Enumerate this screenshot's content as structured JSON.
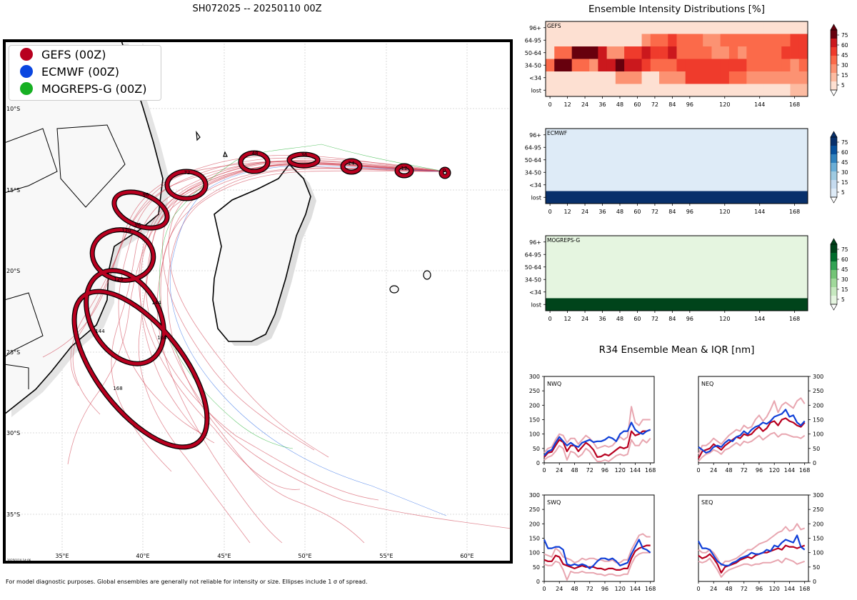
{
  "map": {
    "title": "SH072025 -- 20250110 00Z",
    "footer": "For model diagnostic purposes. Global ensembles are generally not reliable for intensity or size. Ellipses include 1 σ of spread.",
    "stamp": "20250110.14:06",
    "lon_labels": [
      "35°E",
      "40°E",
      "45°E",
      "50°E",
      "55°E",
      "60°E"
    ],
    "lat_labels": [
      "10°S",
      "15°S",
      "20°S",
      "25°S",
      "30°S",
      "35°S"
    ],
    "legend": [
      {
        "label": "GEFS (00Z)",
        "color": "#b8001f"
      },
      {
        "label": "ECMWF (00Z)",
        "color": "#0a46e0"
      },
      {
        "label": "MOGREPS-G (00Z)",
        "color": "#17b023"
      }
    ],
    "ellipse_labels": [
      "0",
      "12",
      "24",
      "36",
      "48",
      "72",
      "96",
      "96",
      "120",
      "120",
      "144",
      "144",
      "168",
      "168"
    ]
  },
  "heatmap": {
    "title": "Ensemble Intensity Distributions [%]",
    "row_labels": [
      "96+",
      "64-95",
      "50-64",
      "34-50",
      "<34",
      "lost"
    ],
    "x_ticks": [
      "0",
      "12",
      "24",
      "36",
      "48",
      "60",
      "72",
      "84",
      "96",
      "120",
      "144",
      "168"
    ],
    "colorbar_ticks": [
      "75",
      "60",
      "45",
      "30",
      "15",
      "5"
    ],
    "panels": [
      {
        "name": "GEFS",
        "colors": [
          "#fde0d2",
          "#fcbba1",
          "#fc9272",
          "#fb6a4a",
          "#ef3b2c",
          "#cb181d",
          "#67000d"
        ]
      },
      {
        "name": "ECMWF",
        "colors": [
          "#deebf7",
          "#c6dbef",
          "#9ecae1",
          "#6baed6",
          "#3182bd",
          "#08519c",
          "#08306b"
        ]
      },
      {
        "name": "MOGREPS-G",
        "colors": [
          "#e5f5e0",
          "#c7e9c0",
          "#a1d99b",
          "#74c476",
          "#31a354",
          "#006d2c",
          "#00441b"
        ]
      }
    ]
  },
  "r34": {
    "title": "R34 Ensemble Mean & IQR [nm]",
    "y_ticks": [
      "300",
      "250",
      "200",
      "150",
      "100",
      "50",
      "0"
    ],
    "x_ticks": [
      "0",
      "24",
      "48",
      "72",
      "96",
      "120",
      "144",
      "168"
    ],
    "panels": [
      {
        "name": "NWQ"
      },
      {
        "name": "NEQ"
      },
      {
        "name": "SWQ"
      },
      {
        "name": "SEQ"
      }
    ]
  },
  "chart_data": [
    {
      "type": "heatmap",
      "title": "Ensemble Intensity Distributions [%] - GEFS",
      "x": [
        0,
        6,
        12,
        18,
        24,
        30,
        36,
        42,
        48,
        54,
        60,
        66,
        72,
        78,
        84,
        90,
        96,
        102,
        108,
        114,
        120,
        126,
        132,
        138,
        144,
        150,
        156,
        162,
        168,
        174
      ],
      "y_categories": [
        "96+",
        "64-95",
        "50-64",
        "34-50",
        "<34",
        "lost"
      ],
      "values": [
        [
          0,
          0,
          0,
          0,
          0,
          0,
          0,
          0,
          0,
          0,
          0,
          0,
          0,
          0,
          0,
          0,
          0,
          0,
          0,
          0,
          0,
          0,
          0,
          0,
          0,
          0,
          0,
          0,
          0,
          0
        ],
        [
          0,
          0,
          0,
          0,
          0,
          0,
          0,
          0,
          0,
          0,
          0,
          15,
          30,
          30,
          45,
          30,
          30,
          30,
          15,
          15,
          30,
          30,
          30,
          30,
          30,
          30,
          30,
          30,
          45,
          45
        ],
        [
          0,
          30,
          30,
          75,
          75,
          75,
          60,
          15,
          15,
          45,
          45,
          60,
          45,
          45,
          60,
          30,
          30,
          30,
          30,
          15,
          15,
          30,
          15,
          30,
          30,
          30,
          30,
          45,
          45,
          45
        ],
        [
          30,
          75,
          75,
          30,
          30,
          15,
          60,
          60,
          75,
          60,
          60,
          45,
          30,
          30,
          30,
          45,
          45,
          45,
          45,
          45,
          45,
          45,
          45,
          30,
          30,
          30,
          30,
          30,
          15,
          30
        ],
        [
          0,
          0,
          0,
          0,
          0,
          0,
          0,
          0,
          15,
          15,
          15,
          0,
          0,
          15,
          15,
          15,
          45,
          45,
          45,
          45,
          45,
          30,
          30,
          15,
          15,
          15,
          15,
          15,
          15,
          15
        ],
        [
          0,
          0,
          0,
          0,
          0,
          0,
          0,
          0,
          0,
          0,
          0,
          0,
          0,
          0,
          0,
          0,
          0,
          0,
          0,
          0,
          0,
          0,
          0,
          0,
          0,
          0,
          0,
          0,
          5,
          5
        ]
      ]
    },
    {
      "type": "heatmap",
      "title": "Ensemble Intensity Distributions [%] - ECMWF",
      "x_range": [
        0,
        174
      ],
      "y_categories": [
        "96+",
        "64-95",
        "50-64",
        "34-50",
        "<34",
        "lost"
      ],
      "rows_percent": {
        "96+": 0,
        "64-95": 0,
        "50-64": 0,
        "34-50": 0,
        "<34": 0,
        "lost": 100
      }
    },
    {
      "type": "heatmap",
      "title": "Ensemble Intensity Distributions [%] - MOGREPS-G",
      "x_range": [
        0,
        174
      ],
      "y_categories": [
        "96+",
        "64-95",
        "50-64",
        "34-50",
        "<34",
        "lost"
      ],
      "rows_percent": {
        "96+": 0,
        "64-95": 0,
        "50-64": 0,
        "34-50": 0,
        "<34": 0,
        "lost": 100
      }
    },
    {
      "type": "line",
      "title": "NWQ",
      "x": [
        0,
        6,
        12,
        18,
        24,
        30,
        36,
        42,
        48,
        54,
        60,
        66,
        72,
        78,
        84,
        90,
        96,
        102,
        108,
        114,
        120,
        126,
        132,
        138,
        144,
        150,
        156,
        162,
        168
      ],
      "ylim": [
        0,
        300
      ],
      "series": [
        {
          "name": "GEFS mean",
          "values": [
            20,
            35,
            38,
            60,
            80,
            72,
            40,
            60,
            60,
            40,
            55,
            70,
            60,
            45,
            20,
            22,
            30,
            25,
            35,
            45,
            55,
            50,
            55,
            110,
            95,
            100,
            110,
            110,
            115
          ]
        },
        {
          "name": "GEFS IQR low",
          "values": [
            10,
            20,
            25,
            40,
            60,
            50,
            10,
            40,
            35,
            20,
            30,
            50,
            40,
            20,
            5,
            5,
            10,
            5,
            15,
            25,
            30,
            25,
            30,
            80,
            60,
            60,
            80,
            70,
            85
          ]
        },
        {
          "name": "GEFS IQR high",
          "values": [
            35,
            50,
            55,
            80,
            100,
            95,
            70,
            85,
            85,
            65,
            80,
            95,
            85,
            70,
            50,
            55,
            60,
            55,
            60,
            75,
            90,
            80,
            90,
            195,
            140,
            130,
            150,
            150,
            150
          ]
        },
        {
          "name": "ECMWF mean",
          "values": [
            25,
            40,
            45,
            70,
            90,
            75,
            60,
            70,
            60,
            55,
            70,
            75,
            80,
            72,
            75,
            75,
            80,
            90,
            85,
            75,
            100,
            110,
            110,
            140,
            115,
            105,
            100,
            110,
            115
          ]
        }
      ]
    },
    {
      "type": "line",
      "title": "NEQ",
      "x": [
        0,
        6,
        12,
        18,
        24,
        30,
        36,
        42,
        48,
        54,
        60,
        66,
        72,
        78,
        84,
        90,
        96,
        102,
        108,
        114,
        120,
        126,
        132,
        138,
        144,
        150,
        156,
        162,
        168
      ],
      "ylim": [
        0,
        300
      ],
      "series": [
        {
          "name": "GEFS mean",
          "values": [
            15,
            40,
            45,
            50,
            65,
            55,
            45,
            60,
            70,
            80,
            90,
            85,
            100,
            95,
            100,
            115,
            125,
            110,
            120,
            140,
            145,
            130,
            150,
            155,
            145,
            140,
            130,
            125,
            140
          ]
        },
        {
          "name": "GEFS IQR low",
          "values": [
            5,
            20,
            30,
            35,
            45,
            40,
            30,
            45,
            50,
            60,
            70,
            60,
            75,
            70,
            75,
            85,
            95,
            80,
            90,
            100,
            105,
            90,
            100,
            100,
            95,
            90,
            90,
            85,
            95
          ]
        },
        {
          "name": "GEFS IQR high",
          "values": [
            30,
            60,
            60,
            70,
            85,
            75,
            65,
            80,
            95,
            105,
            115,
            110,
            130,
            120,
            125,
            150,
            165,
            145,
            160,
            185,
            215,
            175,
            200,
            210,
            200,
            190,
            215,
            225,
            205
          ]
        },
        {
          "name": "ECMWF mean",
          "values": [
            55,
            45,
            35,
            40,
            55,
            60,
            55,
            70,
            80,
            75,
            90,
            95,
            110,
            100,
            115,
            125,
            130,
            140,
            135,
            145,
            160,
            165,
            170,
            185,
            160,
            165,
            140,
            130,
            145
          ]
        }
      ]
    },
    {
      "type": "line",
      "title": "SWQ",
      "x": [
        0,
        6,
        12,
        18,
        24,
        30,
        36,
        42,
        48,
        54,
        60,
        66,
        72,
        78,
        84,
        90,
        96,
        102,
        108,
        114,
        120,
        126,
        132,
        138,
        144,
        150,
        156,
        162,
        168
      ],
      "ylim": [
        0,
        300
      ],
      "series": [
        {
          "name": "GEFS mean",
          "values": [
            75,
            70,
            70,
            90,
            85,
            60,
            55,
            50,
            45,
            50,
            55,
            50,
            50,
            50,
            45,
            45,
            40,
            45,
            45,
            40,
            40,
            45,
            45,
            80,
            105,
            115,
            120,
            125,
            125
          ]
        },
        {
          "name": "GEFS IQR low",
          "values": [
            60,
            55,
            55,
            70,
            65,
            40,
            5,
            35,
            30,
            30,
            35,
            30,
            30,
            30,
            25,
            25,
            20,
            25,
            25,
            20,
            20,
            25,
            25,
            60,
            85,
            95,
            100,
            100,
            100
          ]
        },
        {
          "name": "GEFS IQR high",
          "values": [
            95,
            90,
            85,
            115,
            105,
            85,
            80,
            75,
            65,
            70,
            80,
            75,
            80,
            80,
            75,
            75,
            70,
            70,
            75,
            65,
            65,
            75,
            75,
            110,
            135,
            160,
            165,
            155,
            155
          ]
        },
        {
          "name": "ECMWF mean",
          "values": [
            145,
            115,
            115,
            120,
            120,
            110,
            60,
            55,
            60,
            55,
            60,
            55,
            45,
            55,
            70,
            80,
            80,
            75,
            80,
            70,
            55,
            60,
            65,
            95,
            120,
            145,
            115,
            110,
            100
          ]
        }
      ]
    },
    {
      "type": "line",
      "title": "SEQ",
      "x": [
        0,
        6,
        12,
        18,
        24,
        30,
        36,
        42,
        48,
        54,
        60,
        66,
        72,
        78,
        84,
        90,
        96,
        102,
        108,
        114,
        120,
        126,
        132,
        138,
        144,
        150,
        156,
        162,
        168
      ],
      "ylim": [
        0,
        300
      ],
      "series": [
        {
          "name": "GEFS mean",
          "values": [
            90,
            80,
            85,
            95,
            80,
            60,
            30,
            50,
            55,
            60,
            65,
            75,
            80,
            85,
            80,
            90,
            95,
            100,
            100,
            105,
            110,
            115,
            110,
            125,
            120,
            120,
            115,
            120,
            125
          ]
        },
        {
          "name": "GEFS IQR low",
          "values": [
            70,
            65,
            70,
            80,
            60,
            40,
            15,
            30,
            40,
            45,
            50,
            55,
            60,
            60,
            55,
            60,
            60,
            65,
            65,
            65,
            70,
            75,
            65,
            80,
            75,
            70,
            60,
            65,
            70
          ]
        },
        {
          "name": "GEFS IQR high",
          "values": [
            110,
            100,
            100,
            110,
            100,
            80,
            55,
            70,
            70,
            75,
            80,
            90,
            100,
            110,
            110,
            120,
            130,
            135,
            140,
            150,
            160,
            170,
            175,
            190,
            175,
            180,
            200,
            180,
            185
          ]
        },
        {
          "name": "ECMWF mean",
          "values": [
            140,
            115,
            115,
            110,
            90,
            70,
            60,
            55,
            55,
            65,
            70,
            80,
            85,
            90,
            100,
            95,
            95,
            100,
            110,
            105,
            125,
            120,
            135,
            145,
            140,
            135,
            160,
            120,
            110
          ]
        }
      ]
    }
  ]
}
